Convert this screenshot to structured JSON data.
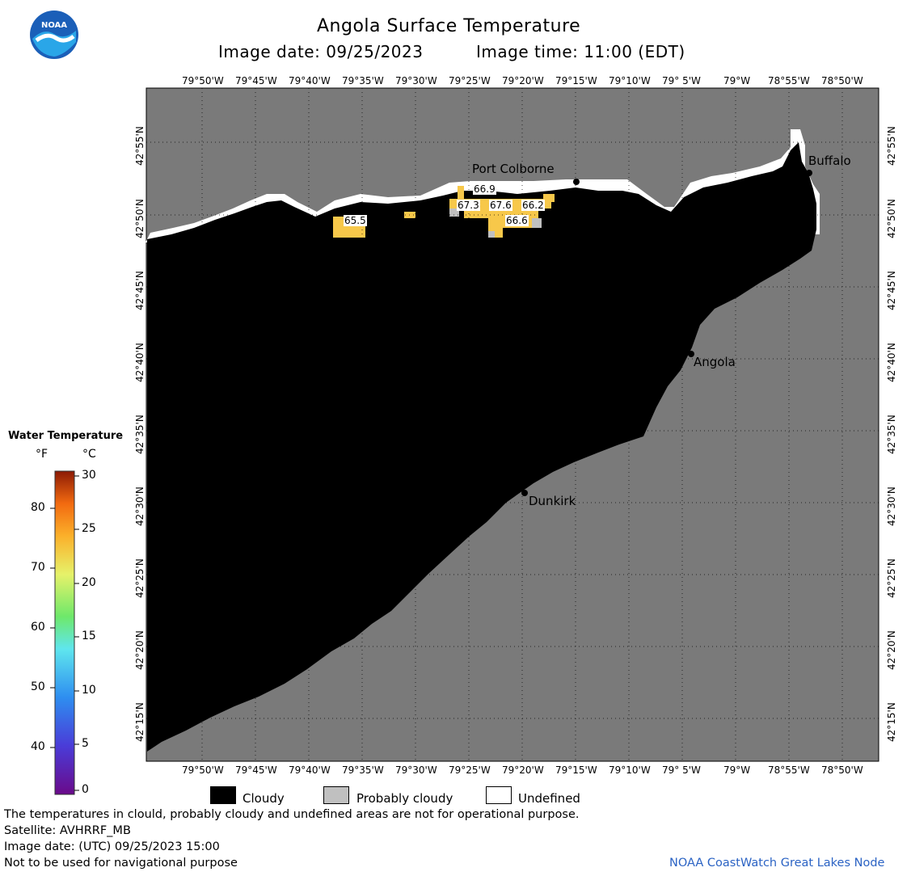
{
  "header": {
    "title": "Angola Surface Temperature",
    "image_date": "Image date: 09/25/2023",
    "image_time": "Image time: 11:00 (EDT)"
  },
  "logo": {
    "text": "NOAA",
    "icon": "noaa-logo-icon"
  },
  "map": {
    "lon_labels": [
      "79°50'W",
      "79°45'W",
      "79°40'W",
      "79°35'W",
      "79°30'W",
      "79°25'W",
      "79°20'W",
      "79°15'W",
      "79°10'W",
      "79° 5'W",
      "79°W",
      "78°55'W",
      "78°50'W"
    ],
    "lat_labels": [
      "42°55'N",
      "42°50'N",
      "42°45'N",
      "42°40'N",
      "42°35'N",
      "42°30'N",
      "42°25'N",
      "42°20'N",
      "42°15'N"
    ],
    "cities": [
      {
        "name": "Port Colborne"
      },
      {
        "name": "Buffalo"
      },
      {
        "name": "Angola"
      },
      {
        "name": "Dunkirk"
      }
    ],
    "temperature_readings": [
      "66.9",
      "67.3",
      "67.6",
      "66.2",
      "65.5",
      "66.6"
    ],
    "colors": {
      "land": "#7a7a7a",
      "cloudy": "#000000",
      "probably_cloudy": "#c0c0c0",
      "undefined": "#ffffff",
      "warm": "#f7c84a"
    }
  },
  "colorbar": {
    "title": "Water Temperature",
    "unit_f": "°F",
    "unit_c": "°C",
    "f_ticks": [
      "80",
      "70",
      "60",
      "50",
      "40"
    ],
    "c_ticks": [
      "30",
      "25",
      "20",
      "15",
      "10",
      "5",
      "0"
    ]
  },
  "legend": {
    "cloudy": "Cloudy",
    "probably_cloudy": "Probably cloudy",
    "undefined": "Undefined"
  },
  "footer": {
    "disclaimer": "The temperatures in clould, probably cloudy and undefined areas are not for operational purpose.",
    "satellite": "Satellite: AVHRRF_MB",
    "utc_date": "Image date: (UTC) 09/25/2023  15:00",
    "nav_warning": "Not to be used for navigational purpose",
    "node": "NOAA CoastWatch Great Lakes Node"
  }
}
